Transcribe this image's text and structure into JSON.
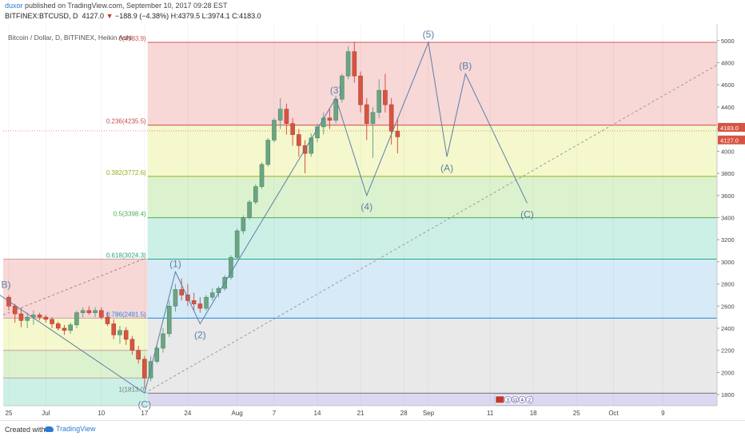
{
  "header": {
    "user": "duxor",
    "published": "published on TradingView.com, September 10, 2017 09:28 EST",
    "symbol": "BITFINEX:BTCUSD, D",
    "last": "4127.0",
    "change_arrow": "▼",
    "change": "−188.9 (−4.38%)",
    "ohlc": "H:4379.5 L:3974.1 C:4183.0"
  },
  "chart_title": "Bitcoin / Dollar, D, BITFINEX, Heikin Ashi",
  "footer": {
    "created": "Created with",
    "brand": "TradingView"
  },
  "chart_data": {
    "type": "candlestick",
    "ylim": [
      1700,
      5150
    ],
    "y_ticks": [
      1800,
      2000,
      2200,
      2400,
      2600,
      2800,
      3000,
      3200,
      3400,
      3600,
      3800,
      4000,
      4200,
      4400,
      4600,
      4800,
      5000
    ],
    "x_ticks": [
      {
        "day": 0,
        "label": "25"
      },
      {
        "day": 6,
        "label": "Jul"
      },
      {
        "day": 15,
        "label": "10"
      },
      {
        "day": 22,
        "label": "17"
      },
      {
        "day": 29,
        "label": "24"
      },
      {
        "day": 37,
        "label": "Aug"
      },
      {
        "day": 43,
        "label": "7"
      },
      {
        "day": 50,
        "label": "14"
      },
      {
        "day": 57,
        "label": "21"
      },
      {
        "day": 64,
        "label": "28"
      },
      {
        "day": 68,
        "label": "Sep"
      },
      {
        "day": 78,
        "label": "11"
      },
      {
        "day": 85,
        "label": "18"
      },
      {
        "day": 92,
        "label": "25"
      },
      {
        "day": 98,
        "label": "Oct"
      },
      {
        "day": 106,
        "label": "9"
      }
    ],
    "colors": {
      "up": "#6ba583",
      "down": "#d75442",
      "wave": "#5b7fa6",
      "fib_line": "#2e8b57"
    },
    "candles": [
      [
        2680,
        2700,
        2560,
        2600
      ],
      [
        2600,
        2620,
        2450,
        2530
      ],
      [
        2530,
        2580,
        2410,
        2470
      ],
      [
        2470,
        2540,
        2400,
        2500
      ],
      [
        2500,
        2560,
        2430,
        2520
      ],
      [
        2520,
        2540,
        2470,
        2500
      ],
      [
        2500,
        2520,
        2450,
        2480
      ],
      [
        2480,
        2500,
        2400,
        2440
      ],
      [
        2440,
        2460,
        2380,
        2400
      ],
      [
        2400,
        2430,
        2340,
        2380
      ],
      [
        2380,
        2450,
        2350,
        2430
      ],
      [
        2430,
        2560,
        2400,
        2540
      ],
      [
        2540,
        2590,
        2500,
        2560
      ],
      [
        2560,
        2600,
        2520,
        2540
      ],
      [
        2540,
        2590,
        2500,
        2560
      ],
      [
        2560,
        2590,
        2480,
        2500
      ],
      [
        2500,
        2540,
        2420,
        2440
      ],
      [
        2440,
        2480,
        2300,
        2340
      ],
      [
        2340,
        2420,
        2260,
        2380
      ],
      [
        2380,
        2410,
        2250,
        2300
      ],
      [
        2300,
        2330,
        2160,
        2200
      ],
      [
        2200,
        2240,
        2080,
        2120
      ],
      [
        2120,
        2150,
        1860,
        1950
      ],
      [
        1950,
        2150,
        1920,
        2100
      ],
      [
        2100,
        2250,
        2080,
        2220
      ],
      [
        2220,
        2400,
        2180,
        2350
      ],
      [
        2350,
        2650,
        2320,
        2600
      ],
      [
        2600,
        2800,
        2550,
        2750
      ],
      [
        2750,
        2850,
        2650,
        2700
      ],
      [
        2700,
        2800,
        2600,
        2650
      ],
      [
        2650,
        2720,
        2560,
        2620
      ],
      [
        2620,
        2680,
        2540,
        2580
      ],
      [
        2580,
        2700,
        2560,
        2680
      ],
      [
        2680,
        2760,
        2650,
        2720
      ],
      [
        2720,
        2780,
        2680,
        2760
      ],
      [
        2760,
        2880,
        2740,
        2860
      ],
      [
        2860,
        3060,
        2840,
        3040
      ],
      [
        3040,
        3300,
        3020,
        3280
      ],
      [
        3280,
        3420,
        3250,
        3400
      ],
      [
        3400,
        3560,
        3380,
        3540
      ],
      [
        3540,
        3700,
        3520,
        3680
      ],
      [
        3680,
        3900,
        3660,
        3880
      ],
      [
        3880,
        4120,
        3860,
        4100
      ],
      [
        4100,
        4300,
        4080,
        4280
      ],
      [
        4280,
        4480,
        4200,
        4380
      ],
      [
        4380,
        4430,
        4150,
        4250
      ],
      [
        4250,
        4300,
        4050,
        4150
      ],
      [
        4150,
        4200,
        3950,
        4050
      ],
      [
        4050,
        4100,
        3800,
        3980
      ],
      [
        3980,
        4160,
        3950,
        4120
      ],
      [
        4120,
        4250,
        4080,
        4220
      ],
      [
        4220,
        4350,
        4150,
        4300
      ],
      [
        4300,
        4380,
        4200,
        4280
      ],
      [
        4280,
        4500,
        4250,
        4470
      ],
      [
        4470,
        4700,
        4440,
        4680
      ],
      [
        4680,
        4950,
        4650,
        4900
      ],
      [
        4900,
        4990,
        4620,
        4680
      ],
      [
        4680,
        4720,
        4350,
        4420
      ],
      [
        4420,
        4480,
        4100,
        4250
      ],
      [
        4250,
        4400,
        3940,
        4350
      ],
      [
        4350,
        4650,
        4300,
        4550
      ],
      [
        4550,
        4700,
        4350,
        4420
      ],
      [
        4420,
        4480,
        4060,
        4180
      ],
      [
        4180,
        4300,
        3980,
        4130
      ]
    ],
    "fib_levels": [
      {
        "ratio": "0",
        "price": 4983.9,
        "label": "0(4983.9)",
        "color": "#d05050"
      },
      {
        "ratio": "0.236",
        "price": 4235.5,
        "label": "0.236(4235.5)",
        "color": "#c94a4a"
      },
      {
        "ratio": "0.382",
        "price": 3772.6,
        "label": "0.382(3772.6)",
        "color": "#9aab1a"
      },
      {
        "ratio": "0.5",
        "price": 3398.4,
        "label": "0.5(3398.4)",
        "color": "#4caf50"
      },
      {
        "ratio": "0.618",
        "price": 3024.3,
        "label": "0.618(3024.3)",
        "color": "#22a383"
      },
      {
        "ratio": "0.786",
        "price": 2491.5,
        "label": "0.786(2491.5)",
        "color": "#1e88e5"
      },
      {
        "ratio": "1",
        "price": 1813.0,
        "label": "1(1813.0)",
        "color": "#777777"
      }
    ],
    "fib_fills": [
      "#f8d7d7",
      "#f4f8cc",
      "#dcf2cf",
      "#cdf0e6",
      "#d6eaf7",
      "#e9e9e9",
      "#ddd8f1"
    ],
    "old_fib_lines": [
      3024,
      2491,
      2200,
      1950,
      1700
    ],
    "wave_points": [
      {
        "day": 22,
        "price": 1813,
        "label": "(C)"
      },
      {
        "day": 27,
        "price": 2910,
        "label": "(1)"
      },
      {
        "day": 31,
        "price": 2440,
        "label": "(2)"
      },
      {
        "day": 53,
        "price": 4480,
        "label": "(3)"
      },
      {
        "day": 58,
        "price": 3600,
        "label": "(4)"
      },
      {
        "day": 68,
        "price": 4983,
        "label": "(5)"
      },
      {
        "day": 71,
        "price": 3950,
        "label": "(A)"
      },
      {
        "day": 74,
        "price": 4700,
        "label": "(B)"
      },
      {
        "day": 84,
        "price": 3530,
        "label": "(C)"
      }
    ],
    "old_wave": [
      {
        "day": -2,
        "price": 2720,
        "label": "B)"
      },
      {
        "day": 22,
        "price": 1813,
        "label": ""
      }
    ],
    "price_labels": [
      {
        "price": 4183.0,
        "text": "4183.0"
      },
      {
        "price": 4127.0,
        "text": "4127.0"
      }
    ],
    "event_badges": [
      "3",
      "11",
      "4",
      "2"
    ]
  }
}
